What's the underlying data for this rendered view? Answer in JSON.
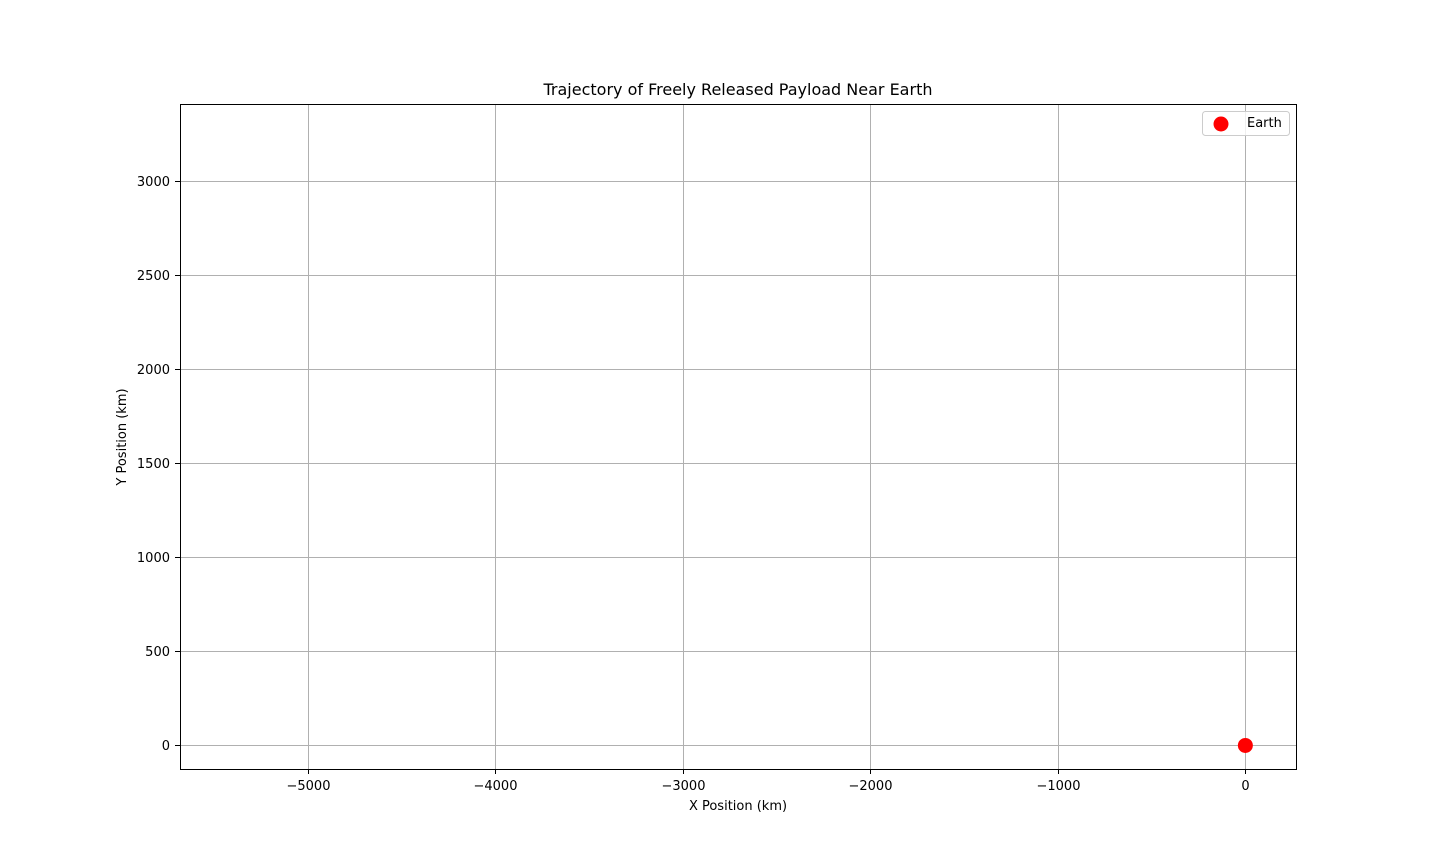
{
  "chart_data": {
    "type": "scatter",
    "title": "Trajectory of Freely Released Payload Near Earth",
    "xlabel": "X Position (km)",
    "ylabel": "Y Position (km)",
    "xlim": [
      -5680,
      270
    ],
    "ylim": [
      -125,
      3410
    ],
    "x_ticks": [
      -5000,
      -4000,
      -3000,
      -2000,
      -1000,
      0
    ],
    "x_tick_labels": [
      "−5000",
      "−4000",
      "−3000",
      "−2000",
      "−1000",
      "0"
    ],
    "y_ticks": [
      0,
      500,
      1000,
      1500,
      2000,
      2500,
      3000
    ],
    "y_tick_labels": [
      "0",
      "500",
      "1000",
      "1500",
      "2000",
      "2500",
      "3000"
    ],
    "grid": true,
    "legend_position": "upper right",
    "series": [
      {
        "name": "Earth",
        "color": "#ff0000",
        "marker": "circle",
        "points": [
          {
            "x": 0,
            "y": 0
          }
        ]
      }
    ]
  }
}
